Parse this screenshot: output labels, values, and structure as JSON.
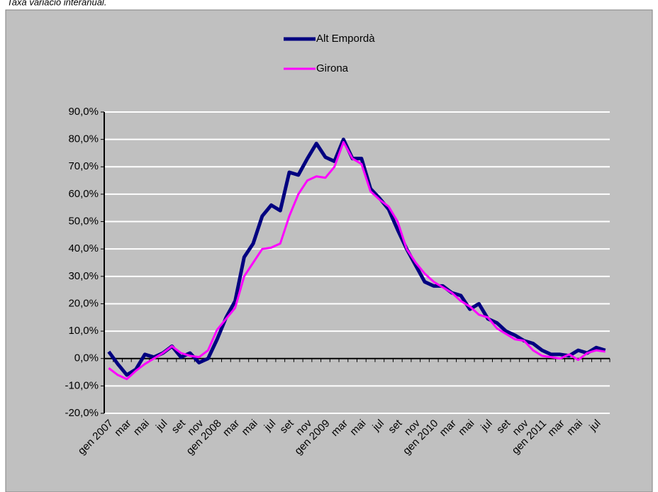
{
  "chart_data": {
    "type": "line",
    "title": "Taxa variació interanual.",
    "categories": [
      "gen 2007",
      null,
      "mar",
      null,
      "mai",
      null,
      "jul",
      null,
      "set",
      null,
      "nov",
      null,
      "gen 2008",
      null,
      "mar",
      null,
      "mai",
      null,
      "jul",
      null,
      "set",
      null,
      "nov",
      null,
      "gen 2009",
      null,
      "mar",
      null,
      "mai",
      null,
      "jul",
      null,
      "set",
      null,
      "nov",
      null,
      "gen 2010",
      null,
      "mar",
      null,
      "mai",
      null,
      "jul",
      null,
      "set",
      null,
      "nov",
      null,
      "gen 2011",
      null,
      "mar",
      null,
      "mai",
      null,
      "jul",
      null
    ],
    "series": [
      {
        "name": "Alt Empordà",
        "color": "#000080",
        "values": [
          2.5,
          -2,
          -6,
          -4,
          1.5,
          0.5,
          2,
          4.5,
          0.5,
          2,
          -1.5,
          0,
          7,
          15,
          21,
          37,
          42,
          52,
          56,
          54,
          68,
          67,
          73,
          78.5,
          73.5,
          72,
          80,
          73,
          73,
          62,
          58.5,
          54.5,
          47,
          40,
          34,
          28,
          26.5,
          26.5,
          24,
          23,
          18,
          20,
          14.5,
          13,
          10,
          8.5,
          6.5,
          5.5,
          3,
          1.5,
          1.5,
          1,
          3,
          2,
          4,
          3
        ]
      },
      {
        "name": "Girona",
        "color": "#ff00ff",
        "values": [
          -3.5,
          -6,
          -7.5,
          -4.5,
          -2,
          0,
          2,
          4.5,
          2,
          1,
          0.5,
          3,
          10.5,
          14.5,
          18.5,
          30,
          35,
          40,
          40.5,
          42,
          52,
          60,
          65,
          66.5,
          66,
          70,
          79,
          73,
          71,
          61,
          58,
          55.5,
          50,
          40,
          35,
          31,
          28,
          26,
          24,
          21,
          19,
          16,
          15,
          11,
          9,
          7,
          6.5,
          3,
          1,
          0.5,
          0,
          1.5,
          -0.5,
          2,
          3,
          2.5
        ]
      }
    ],
    "ylim": [
      -20,
      90
    ],
    "yticks": [
      {
        "value": -20,
        "label": "-20,0%"
      },
      {
        "value": -10,
        "label": "-10,0%"
      },
      {
        "value": 0,
        "label": "0,0%"
      },
      {
        "value": 10,
        "label": "10,0%"
      },
      {
        "value": 20,
        "label": "20,0%"
      },
      {
        "value": 30,
        "label": "30,0%"
      },
      {
        "value": 40,
        "label": "40,0%"
      },
      {
        "value": 50,
        "label": "50,0%"
      },
      {
        "value": 60,
        "label": "60,0%"
      },
      {
        "value": 70,
        "label": "70,0%"
      },
      {
        "value": 80,
        "label": "80,0%"
      },
      {
        "value": 90,
        "label": "90,0%"
      }
    ],
    "grid": true,
    "legend": "top"
  }
}
